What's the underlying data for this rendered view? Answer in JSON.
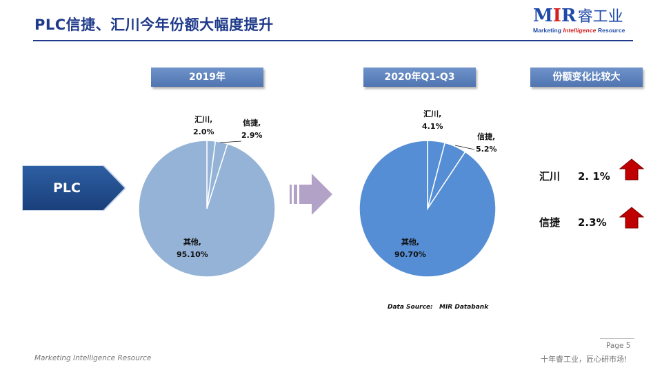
{
  "title": "PLC信捷、汇川今年份额大幅度提升",
  "logo": {
    "mark": "MIR",
    "cn": "睿工业",
    "sub_pre": "Marketing ",
    "sub_mid": "Intelligence",
    "sub_post": " Resource"
  },
  "left_label": "PLC",
  "headers": {
    "pie1": "2019年",
    "pie2": "2020年Q1-Q3",
    "change": "份额变化比较大"
  },
  "colors": {
    "title": "#1f3a8a",
    "header": "#5b7fbc",
    "pie1": "#95b3d7",
    "pie2": "#558ed5",
    "arrow": "#b3a2c7",
    "up_arrow": "#c00000",
    "plc_box": "#1f4e8c"
  },
  "chart_data": [
    {
      "type": "pie",
      "title": "2019年",
      "slices": [
        {
          "label": "汇川,",
          "value": 2.0,
          "display": "2.0%"
        },
        {
          "label": "信捷,",
          "value": 2.9,
          "display": "2.9%"
        },
        {
          "label": "其他,",
          "value": 95.1,
          "display": "95.10%"
        }
      ]
    },
    {
      "type": "pie",
      "title": "2020年Q1-Q3",
      "slices": [
        {
          "label": "汇川,",
          "value": 4.1,
          "display": "4.1%"
        },
        {
          "label": "信捷,",
          "value": 5.2,
          "display": "5.2%"
        },
        {
          "label": "其他,",
          "value": 90.7,
          "display": "90.70%"
        }
      ]
    }
  ],
  "changes": [
    {
      "name": "汇川",
      "value": "2. 1%"
    },
    {
      "name": "信捷",
      "value": "2.3%"
    }
  ],
  "source": "Data Source:   MIR Databank",
  "footer": {
    "left": "Marketing Intelligence Resource",
    "page": "Page 5",
    "right": "十年睿工业，匠心研市场!"
  }
}
